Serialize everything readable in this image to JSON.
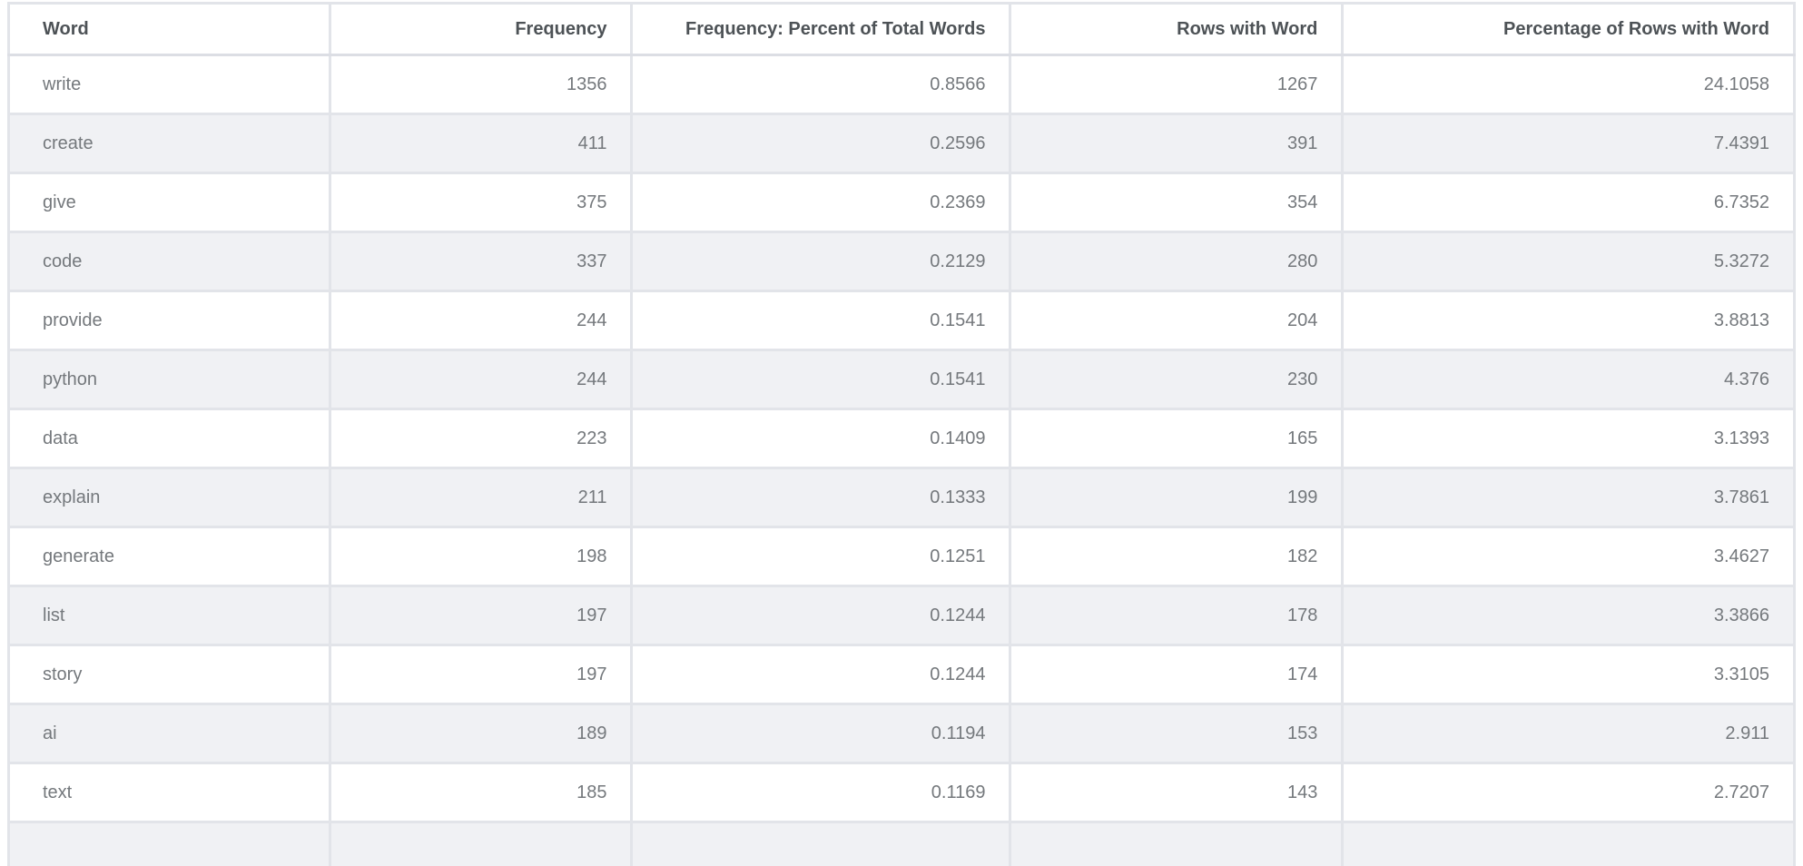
{
  "theme": {
    "background": "#ffffff",
    "stripe_row": "#f0f1f4",
    "border": "#e2e4e9",
    "header_text": "#4d5256",
    "cell_text": "#74787c"
  },
  "table": {
    "columns": [
      {
        "key": "word",
        "label": "Word"
      },
      {
        "key": "frequency",
        "label": "Frequency"
      },
      {
        "key": "frequency-percent-of-total-words",
        "label": "Frequency: Percent of Total Words"
      },
      {
        "key": "rows-with-word",
        "label": "Rows with Word"
      },
      {
        "key": "percentage-of-rows-with-word",
        "label": "Percentage of Rows with Word"
      }
    ],
    "rows": [
      [
        "write",
        "1356",
        "0.8566",
        "1267",
        "24.1058"
      ],
      [
        "create",
        "411",
        "0.2596",
        "391",
        "7.4391"
      ],
      [
        "give",
        "375",
        "0.2369",
        "354",
        "6.7352"
      ],
      [
        "code",
        "337",
        "0.2129",
        "280",
        "5.3272"
      ],
      [
        "provide",
        "244",
        "0.1541",
        "204",
        "3.8813"
      ],
      [
        "python",
        "244",
        "0.1541",
        "230",
        "4.376"
      ],
      [
        "data",
        "223",
        "0.1409",
        "165",
        "3.1393"
      ],
      [
        "explain",
        "211",
        "0.1333",
        "199",
        "3.7861"
      ],
      [
        "generate",
        "198",
        "0.1251",
        "182",
        "3.4627"
      ],
      [
        "list",
        "197",
        "0.1244",
        "178",
        "3.3866"
      ],
      [
        "story",
        "197",
        "0.1244",
        "174",
        "3.3105"
      ],
      [
        "ai",
        "189",
        "0.1194",
        "153",
        "2.911"
      ],
      [
        "text",
        "185",
        "0.1169",
        "143",
        "2.7207"
      ]
    ]
  }
}
